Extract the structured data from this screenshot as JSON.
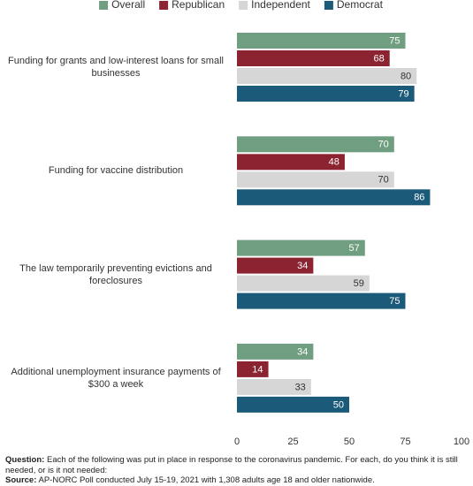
{
  "chart_data": {
    "type": "bar",
    "orientation": "horizontal",
    "categories": [
      "Funding for grants and low-interest loans for small businesses",
      "Funding for vaccine distribution",
      "The law temporarily preventing evictions and foreclosures",
      "Additional unemployment insurance payments of $300 a week"
    ],
    "series": [
      {
        "name": "Overall",
        "color": "#6f9e80",
        "values": [
          75,
          70,
          57,
          34
        ]
      },
      {
        "name": "Republican",
        "color": "#8b2331",
        "values": [
          68,
          48,
          34,
          14
        ]
      },
      {
        "name": "Independent",
        "color": "#d6d6d6",
        "values": [
          80,
          70,
          59,
          33
        ]
      },
      {
        "name": "Democrat",
        "color": "#1c5a7a",
        "values": [
          79,
          86,
          75,
          50
        ]
      }
    ],
    "xlim": [
      0,
      100
    ],
    "xticks": [
      0,
      25,
      50,
      75,
      100
    ],
    "grid": false,
    "legend": "top"
  },
  "note": {
    "question_label": "Question:",
    "question": "Each of the following was put in place in response to the coronavirus pandemic. For each, do you think it is still needed, or is it not needed:",
    "source_label": "Source:",
    "source": "AP-NORC Poll conducted July 15-19, 2021 with 1,308 adults age 18 and older nationwide."
  }
}
